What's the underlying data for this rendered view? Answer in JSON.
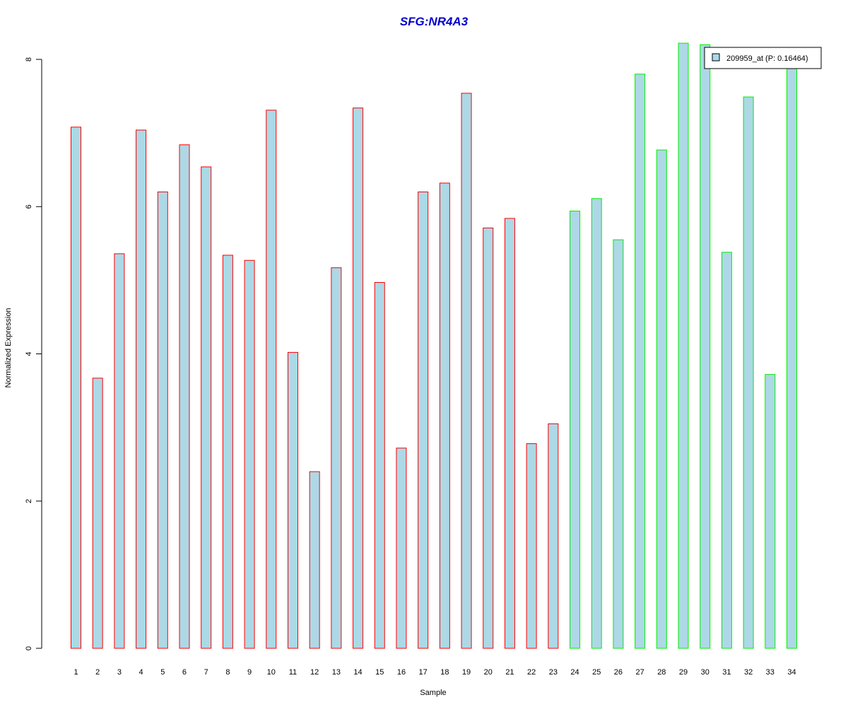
{
  "chart_data": {
    "type": "bar",
    "title": "SFG:NR4A3",
    "xlabel": "Sample",
    "ylabel": "Normalized Expression",
    "ylim": [
      0,
      8.2
    ],
    "yticks": [
      "0",
      "2",
      "4",
      "6",
      "8"
    ],
    "categories": [
      "1",
      "2",
      "3",
      "4",
      "5",
      "6",
      "7",
      "8",
      "9",
      "10",
      "11",
      "12",
      "13",
      "14",
      "15",
      "16",
      "17",
      "18",
      "19",
      "20",
      "21",
      "22",
      "23",
      "24",
      "25",
      "26",
      "27",
      "28",
      "29",
      "30",
      "31",
      "32",
      "33",
      "34"
    ],
    "values": [
      7.08,
      3.67,
      5.36,
      7.04,
      6.2,
      6.84,
      6.54,
      5.34,
      5.27,
      7.31,
      4.02,
      2.4,
      5.17,
      7.34,
      4.97,
      2.72,
      6.2,
      6.32,
      7.54,
      5.71,
      5.84,
      2.78,
      3.05,
      5.94,
      6.11,
      5.55,
      7.8,
      6.77,
      8.22,
      8.2,
      5.38,
      7.49,
      3.72,
      7.98
    ],
    "groups": [
      "a",
      "a",
      "a",
      "a",
      "a",
      "a",
      "a",
      "a",
      "a",
      "a",
      "a",
      "a",
      "a",
      "a",
      "a",
      "a",
      "a",
      "a",
      "a",
      "a",
      "a",
      "a",
      "a",
      "b",
      "b",
      "b",
      "b",
      "b",
      "b",
      "b",
      "b",
      "b",
      "b",
      "b"
    ],
    "colors": {
      "bar_fill": "#add8e6",
      "group_a_border": "#ff0000",
      "group_b_border": "#00ee00",
      "title": "#0000cd"
    },
    "legend": {
      "label": "209959_at (P: 0.16464)",
      "position": "top-right"
    }
  }
}
